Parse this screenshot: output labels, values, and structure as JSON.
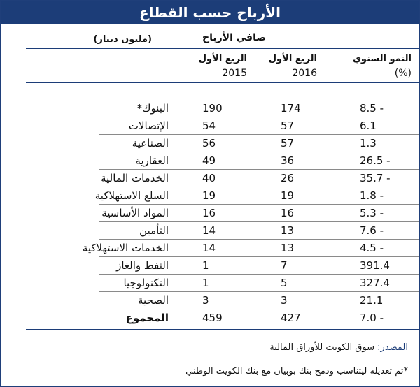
{
  "title": "الأرباح حسب القطاع",
  "unit": "(مليون دينار)",
  "net_profit_label": "صافي الأرباح",
  "columns": {
    "q1_2015": {
      "line1": "الربع الأول",
      "line2": "2015"
    },
    "q1_2016": {
      "line1": "الربع الأول",
      "line2": "2016"
    },
    "growth": {
      "line1": "النمو السنوي",
      "line2": "(%)"
    }
  },
  "rows": [
    {
      "sector": "البنوك*",
      "v2015": "190",
      "v2016": "174",
      "growth": "- 8.5"
    },
    {
      "sector": "الإتصالات",
      "v2015": "54",
      "v2016": "57",
      "growth": "6.1"
    },
    {
      "sector": "الصناعية",
      "v2015": "56",
      "v2016": "57",
      "growth": "1.3"
    },
    {
      "sector": "العقارية",
      "v2015": "49",
      "v2016": "36",
      "growth": "- 26.5"
    },
    {
      "sector": "الخدمات المالية",
      "v2015": "40",
      "v2016": "26",
      "growth": "- 35.7"
    },
    {
      "sector": "السلع الاستهلاكية",
      "v2015": "19",
      "v2016": "19",
      "growth": "- 1.8"
    },
    {
      "sector": "المواد الأساسية",
      "v2015": "16",
      "v2016": "16",
      "growth": "- 5.3"
    },
    {
      "sector": "التأمين",
      "v2015": "14",
      "v2016": "13",
      "growth": "- 7.6"
    },
    {
      "sector": "الخدمات الاستهلاكية",
      "v2015": "14",
      "v2016": "13",
      "growth": "- 4.5"
    },
    {
      "sector": "النفط والغاز",
      "v2015": "1",
      "v2016": "7",
      "growth": "391.4"
    },
    {
      "sector": "التكنولوجيا",
      "v2015": "1",
      "v2016": "5",
      "growth": "327.4"
    },
    {
      "sector": "الصحية",
      "v2015": "3",
      "v2016": "3",
      "growth": "21.1"
    },
    {
      "sector": "المجموع",
      "v2015": "459",
      "v2016": "427",
      "growth": "- 7.0"
    }
  ],
  "source": {
    "key": "المصدر:",
    "value": "سوق الكويت للأوراق المالية"
  },
  "note": "*تم تعديله ليتناسب ودمج بنك بوبيان مع بنك الكويت الوطني",
  "colors": {
    "header_bg": "#1c3d78",
    "accent": "#1c3d78"
  }
}
